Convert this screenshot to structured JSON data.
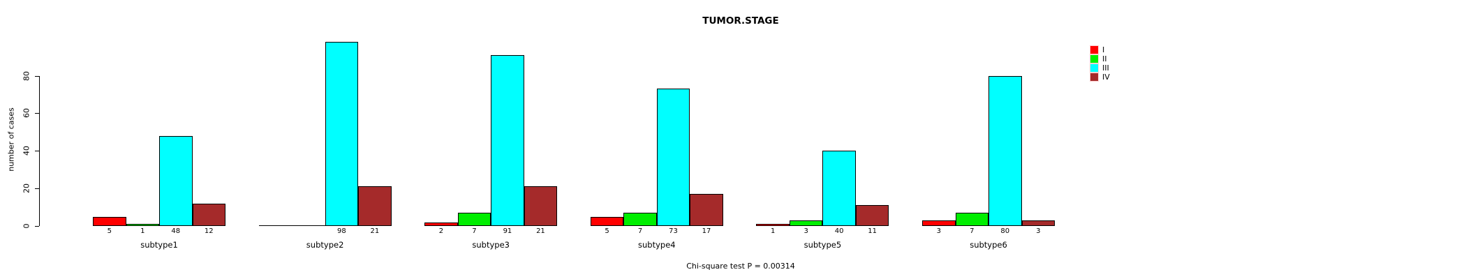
{
  "title": "TUMOR.STAGE",
  "ylabel": "number of cases",
  "footnote": "Chi-square test P = 0.00314",
  "chart_data": {
    "type": "bar",
    "title": "TUMOR.STAGE",
    "xlabel": "",
    "ylabel": "number of cases",
    "categories": [
      "subtype1",
      "subtype2",
      "subtype3",
      "subtype4",
      "subtype5",
      "subtype6"
    ],
    "series": [
      {
        "name": "I",
        "color": "#ff0000",
        "values": [
          5,
          0,
          2,
          5,
          1,
          3
        ]
      },
      {
        "name": "II",
        "color": "#00ee00",
        "values": [
          1,
          0,
          7,
          7,
          3,
          7
        ]
      },
      {
        "name": "III",
        "color": "#00ffff",
        "values": [
          48,
          98,
          91,
          73,
          40,
          80
        ]
      },
      {
        "name": "IV",
        "color": "#a52a2a",
        "values": [
          12,
          21,
          21,
          17,
          11,
          3
        ]
      }
    ],
    "yticks": [
      0,
      20,
      40,
      60,
      80
    ],
    "ylim": [
      0,
      98
    ],
    "grid": false,
    "legend_position": "right",
    "bar_value_labels": "each bar's value is printed beneath it; zero values show no label",
    "annotation": "Chi-square test P = 0.00314"
  }
}
